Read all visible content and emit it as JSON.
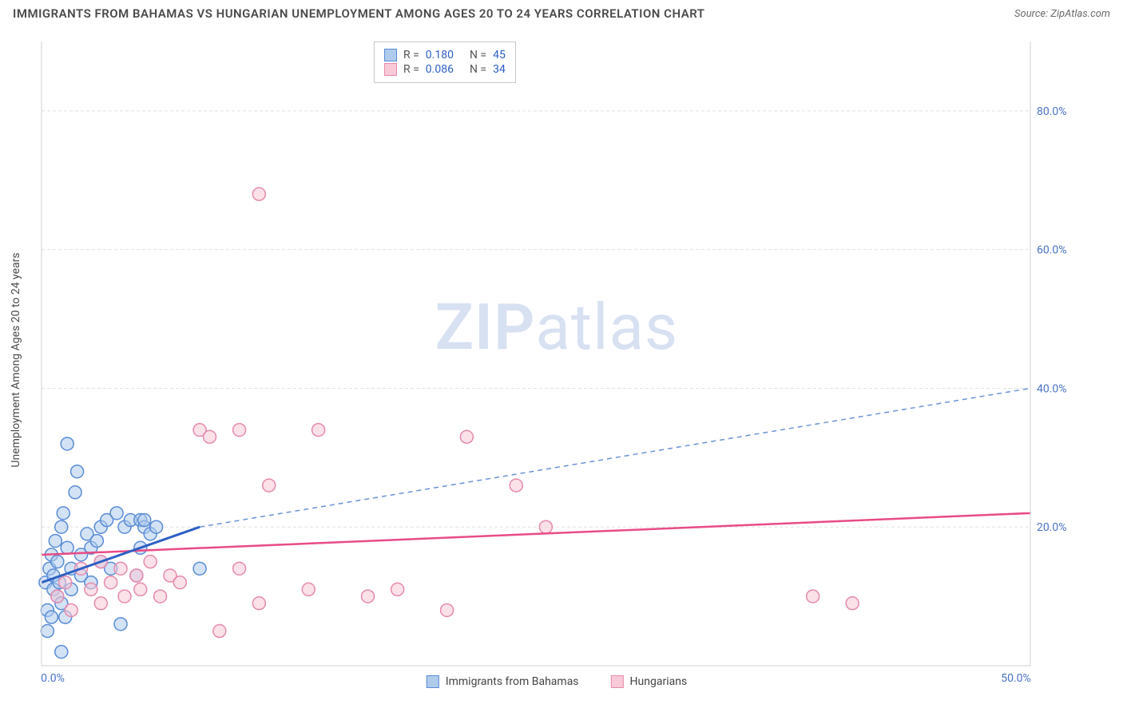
{
  "title": "IMMIGRANTS FROM BAHAMAS VS HUNGARIAN UNEMPLOYMENT AMONG AGES 20 TO 24 YEARS CORRELATION CHART",
  "source": "Source: ZipAtlas.com",
  "watermark_a": "ZIP",
  "watermark_b": "atlas",
  "ylabel": "Unemployment Among Ages 20 to 24 years",
  "chart": {
    "type": "scatter",
    "xlim": [
      0,
      50
    ],
    "ylim": [
      0,
      90
    ],
    "yticks": [
      20,
      40,
      60,
      80
    ],
    "ytick_labels": [
      "20.0%",
      "40.0%",
      "60.0%",
      "80.0%"
    ],
    "xticks": [
      0,
      50
    ],
    "xtick_labels": [
      "0.0%",
      "50.0%"
    ],
    "background_color": "#ffffff",
    "grid_color": "#e0e0e0",
    "marker_radius": 8,
    "marker_stroke_width": 1.5,
    "series": [
      {
        "name": "Immigrants from Bahamas",
        "fill": "#aecbec",
        "stroke": "#5a8cd6",
        "fill_opacity": 0.55,
        "R": "0.180",
        "N": "45",
        "trend_solid": {
          "x1": 0,
          "y1": 12,
          "x2": 8,
          "y2": 20
        },
        "trend_dash": {
          "x1": 8,
          "y1": 20,
          "x2": 50,
          "y2": 40
        },
        "points": [
          [
            0.2,
            12
          ],
          [
            0.3,
            8
          ],
          [
            0.4,
            14
          ],
          [
            0.5,
            7
          ],
          [
            0.5,
            16
          ],
          [
            0.6,
            11
          ],
          [
            0.6,
            13
          ],
          [
            0.7,
            18
          ],
          [
            0.8,
            10
          ],
          [
            0.8,
            15
          ],
          [
            0.9,
            12
          ],
          [
            1.0,
            9
          ],
          [
            1.0,
            20
          ],
          [
            1.1,
            22
          ],
          [
            1.2,
            7
          ],
          [
            1.3,
            17
          ],
          [
            1.3,
            32
          ],
          [
            1.5,
            11
          ],
          [
            1.5,
            14
          ],
          [
            1.7,
            25
          ],
          [
            1.8,
            28
          ],
          [
            2.0,
            16
          ],
          [
            2.0,
            13
          ],
          [
            2.3,
            19
          ],
          [
            2.5,
            12
          ],
          [
            2.5,
            17
          ],
          [
            2.8,
            18
          ],
          [
            3.0,
            20
          ],
          [
            3.0,
            15
          ],
          [
            3.3,
            21
          ],
          [
            3.5,
            14
          ],
          [
            3.8,
            22
          ],
          [
            4.0,
            6
          ],
          [
            4.2,
            20
          ],
          [
            4.5,
            21
          ],
          [
            4.8,
            13
          ],
          [
            5.0,
            21
          ],
          [
            5.0,
            17
          ],
          [
            5.2,
            20
          ],
          [
            5.2,
            21
          ],
          [
            5.5,
            19
          ],
          [
            5.8,
            20
          ],
          [
            8.0,
            14
          ],
          [
            1.0,
            2
          ],
          [
            0.3,
            5
          ]
        ]
      },
      {
        "name": "Hungarians",
        "fill": "#f8c9d6",
        "stroke": "#e68aae",
        "fill_opacity": 0.55,
        "R": "0.086",
        "N": "34",
        "trend_solid": {
          "x1": 0,
          "y1": 16,
          "x2": 50,
          "y2": 22
        },
        "points": [
          [
            0.8,
            10
          ],
          [
            1.2,
            12
          ],
          [
            1.5,
            8
          ],
          [
            2.0,
            14
          ],
          [
            2.5,
            11
          ],
          [
            3.0,
            15
          ],
          [
            3.0,
            9
          ],
          [
            3.5,
            12
          ],
          [
            4.0,
            14
          ],
          [
            4.2,
            10
          ],
          [
            4.8,
            13
          ],
          [
            5.0,
            11
          ],
          [
            5.5,
            15
          ],
          [
            6.0,
            10
          ],
          [
            6.5,
            13
          ],
          [
            7.0,
            12
          ],
          [
            8.0,
            34
          ],
          [
            8.5,
            33
          ],
          [
            9.0,
            5
          ],
          [
            10.0,
            14
          ],
          [
            10.0,
            34
          ],
          [
            11.0,
            68
          ],
          [
            11.0,
            9
          ],
          [
            11.5,
            26
          ],
          [
            13.5,
            11
          ],
          [
            14.0,
            34
          ],
          [
            16.5,
            10
          ],
          [
            18.0,
            11
          ],
          [
            20.5,
            8
          ],
          [
            21.5,
            33
          ],
          [
            24.0,
            26
          ],
          [
            25.5,
            20
          ],
          [
            39.0,
            10
          ],
          [
            41.0,
            9
          ]
        ]
      }
    ]
  },
  "stat_box": {
    "rows": [
      {
        "swatch": "blue",
        "r_label": "R =",
        "r_val": "0.180",
        "n_label": "N =",
        "n_val": "45"
      },
      {
        "swatch": "pink",
        "r_label": "R =",
        "r_val": "0.086",
        "n_label": "N =",
        "n_val": "34"
      }
    ]
  },
  "bottom_legend": [
    {
      "swatch": "blue",
      "label": "Immigrants from Bahamas"
    },
    {
      "swatch": "pink",
      "label": "Hungarians"
    }
  ]
}
